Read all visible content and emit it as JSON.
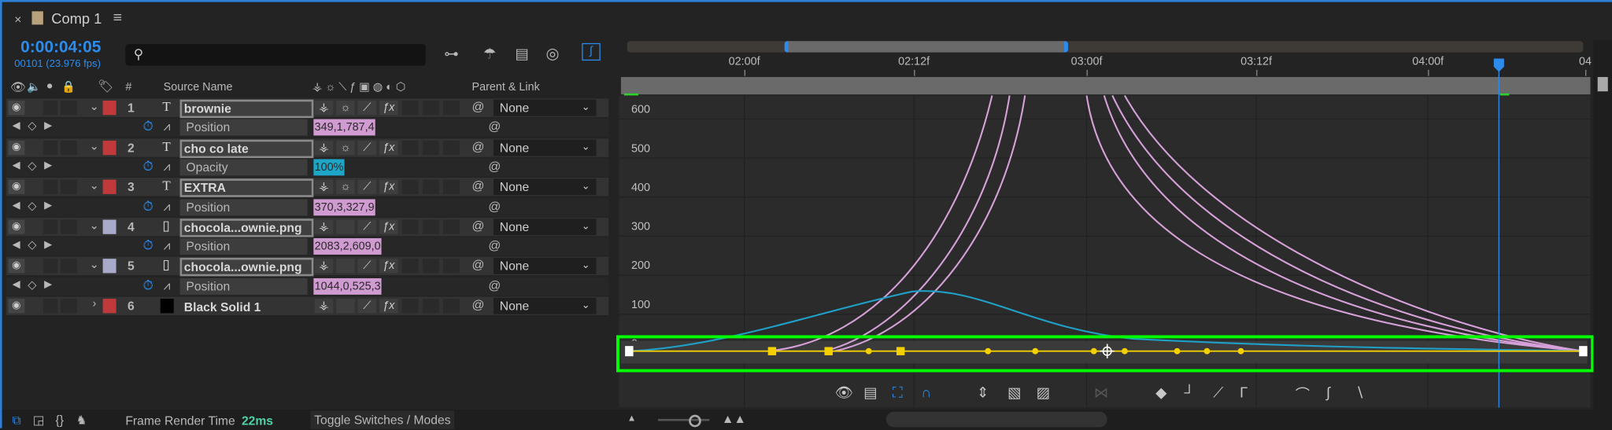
{
  "tab": {
    "close": "×",
    "title": "Comp 1",
    "menu": "≡",
    "swatch_color": "#b8a27c"
  },
  "timecode": "0:00:04:05",
  "frame_info": "00101 (23.976 fps)",
  "search": {
    "placeholder": ""
  },
  "columns": {
    "number": "#",
    "source_name": "Source Name",
    "parent_link": "Parent & Link"
  },
  "rows": [
    {
      "type": "layer",
      "num": "1",
      "name": "brownie",
      "kind": "text",
      "color": "#c0393b",
      "parent": "None",
      "outlined": true
    },
    {
      "type": "prop",
      "name": "Position",
      "value": "349,1,787,4",
      "value_color": "#cf9bd0"
    },
    {
      "type": "layer",
      "num": "2",
      "name": "cho co late",
      "kind": "text",
      "color": "#c0393b",
      "parent": "None",
      "outlined": true
    },
    {
      "type": "prop",
      "name": "Opacity",
      "value": "100%",
      "value_color": "#1ea6c9"
    },
    {
      "type": "layer",
      "num": "3",
      "name": "EXTRA",
      "kind": "text",
      "color": "#c0393b",
      "parent": "None",
      "outlined": true
    },
    {
      "type": "prop",
      "name": "Position",
      "value": "370,3,327,9",
      "value_color": "#cf9bd0"
    },
    {
      "type": "layer",
      "num": "4",
      "name": "chocola...ownie.png",
      "kind": "image",
      "color": "#a9a9c9",
      "parent": "None",
      "outlined": true
    },
    {
      "type": "prop",
      "name": "Position",
      "value": "2083,2,609,0",
      "value_color": "#cf9bd0"
    },
    {
      "type": "layer",
      "num": "5",
      "name": "chocola...ownie.png",
      "kind": "image",
      "color": "#a9a9c9",
      "parent": "None",
      "outlined": true
    },
    {
      "type": "prop",
      "name": "Position",
      "value": "1044,0,525,3",
      "value_color": "#cf9bd0"
    },
    {
      "type": "layer",
      "num": "6",
      "name": "Black Solid 1",
      "kind": "solid",
      "color": "#c0393b",
      "parent": "None",
      "outlined": false,
      "collapsed": true
    }
  ],
  "ruler": {
    "ticks": [
      "02:00f",
      "02:12f",
      "03:00f",
      "03:12f",
      "04:00f",
      "04"
    ]
  },
  "graph": {
    "value_labels": [
      "600",
      "500",
      "400",
      "300",
      "200",
      "100",
      "0"
    ],
    "curve_colors": {
      "position": "#d6a0d8",
      "opacity": "#1fa0c8",
      "keyframe": "#f5d000"
    },
    "highlight_color": "#00ff00"
  },
  "status": {
    "frame_render_label": "Frame Render Time",
    "frame_render_value": "22ms",
    "toggle": "Toggle Switches / Modes"
  }
}
